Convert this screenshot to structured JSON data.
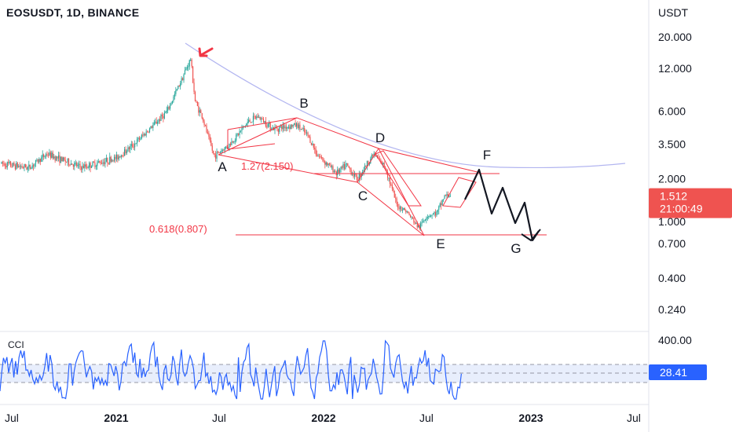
{
  "header": {
    "symbol": "EOSUSDT, 1D, BINANCE",
    "currency": "USDT"
  },
  "chart_data": {
    "type": "line",
    "title": "EOSUSDT, 1D, BINANCE",
    "scale": "log",
    "price_axis": [
      "20.000",
      "12.000",
      "6.000",
      "3.500",
      "2.000",
      "1.000",
      "0.700",
      "0.400",
      "0.240"
    ],
    "time_axis": [
      "Jul",
      "2021",
      "Jul",
      "2022",
      "Jul",
      "2023",
      "Jul"
    ],
    "current_price": {
      "value": "1.512",
      "countdown": "21:00:49",
      "color": "#ef5350"
    },
    "series": [
      {
        "x": [
          "2020-06",
          "2020-08",
          "2020-09",
          "2020-11",
          "2020-12",
          "2021-01",
          "2021-02",
          "2021-03",
          "2021-04",
          "2021-05-12",
          "2021-05-20",
          "2021-06-01",
          "2021-06-22",
          "2021-07-20",
          "2021-08-20",
          "2021-09-07",
          "2021-10-05",
          "2021-11-15",
          "2021-12-05",
          "2021-12-20",
          "2022-01-05",
          "2022-01-24",
          "2022-02-10",
          "2022-03-01",
          "2022-03-30",
          "2022-04-20",
          "2022-05-10",
          "2022-05-25",
          "2022-06-18",
          "2022-07-01",
          "2022-07-20",
          "2022-08-01",
          "2022-08-14"
        ],
        "values": [
          2.6,
          2.4,
          3.0,
          2.4,
          2.6,
          2.8,
          3.5,
          4.5,
          6.0,
          14.0,
          7.0,
          5.5,
          2.9,
          3.5,
          5.0,
          5.5,
          4.5,
          4.8,
          4.0,
          3.0,
          2.6,
          2.2,
          2.5,
          2.0,
          3.0,
          2.4,
          1.3,
          1.2,
          0.9,
          1.1,
          1.15,
          1.5,
          1.55
        ]
      }
    ],
    "annotations": {
      "wave_labels": [
        "A",
        "B",
        "C",
        "D",
        "E",
        "F",
        "G"
      ],
      "fib_levels": [
        "1.27(2.150)",
        "0.618(0.807)"
      ],
      "projection_color": "#131722",
      "drawing_color": "#f23645",
      "curve_color": "#b2b5f0"
    },
    "indicator": {
      "name": "CCI",
      "value": "28.41",
      "axis_label": "400.00",
      "color": "#2962ff"
    }
  }
}
